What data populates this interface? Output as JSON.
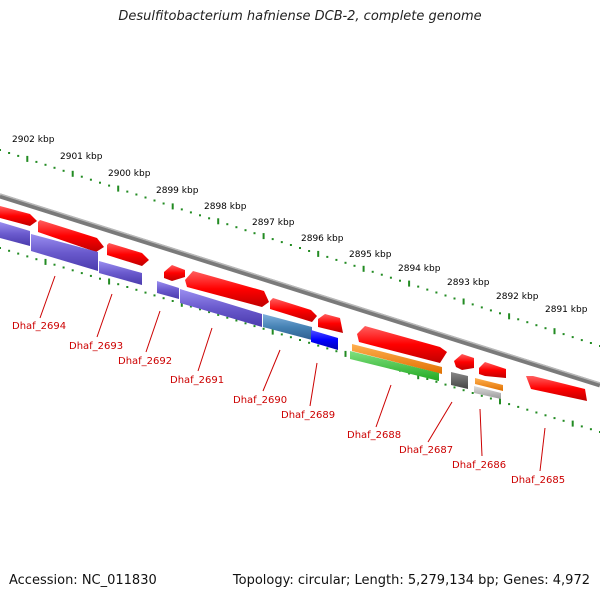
{
  "title": "Desulfitobacterium hafniense DCB-2, complete genome",
  "footer": {
    "accession_label": "Accession: NC_011830",
    "topology_label": "Topology: circular; Length: 5,279,134 bp; Genes: 4,972"
  },
  "scale_labels": [
    "2902 kbp",
    "2901 kbp",
    "2900 kbp",
    "2899 kbp",
    "2898 kbp",
    "2897 kbp",
    "2896 kbp",
    "2895 kbp",
    "2894 kbp",
    "2893 kbp",
    "2892 kbp",
    "2891 kbp"
  ],
  "gene_labels": [
    "Dhaf_2694",
    "Dhaf_2693",
    "Dhaf_2692",
    "Dhaf_2691",
    "Dhaf_2690",
    "Dhaf_2689",
    "Dhaf_2688",
    "Dhaf_2687",
    "Dhaf_2686",
    "Dhaf_2685"
  ],
  "colors": {
    "cds": "#ff0000",
    "gene_blue": "#6a5acd",
    "steel": "#4682b4",
    "blue": "#0000ff",
    "orange": "#ff8c00",
    "green": "#33cc33",
    "gray": "#555555",
    "light_gray": "#b0b0b0",
    "backbone": "#808080",
    "ticks": "#228b22",
    "label_red": "#cc0000"
  }
}
